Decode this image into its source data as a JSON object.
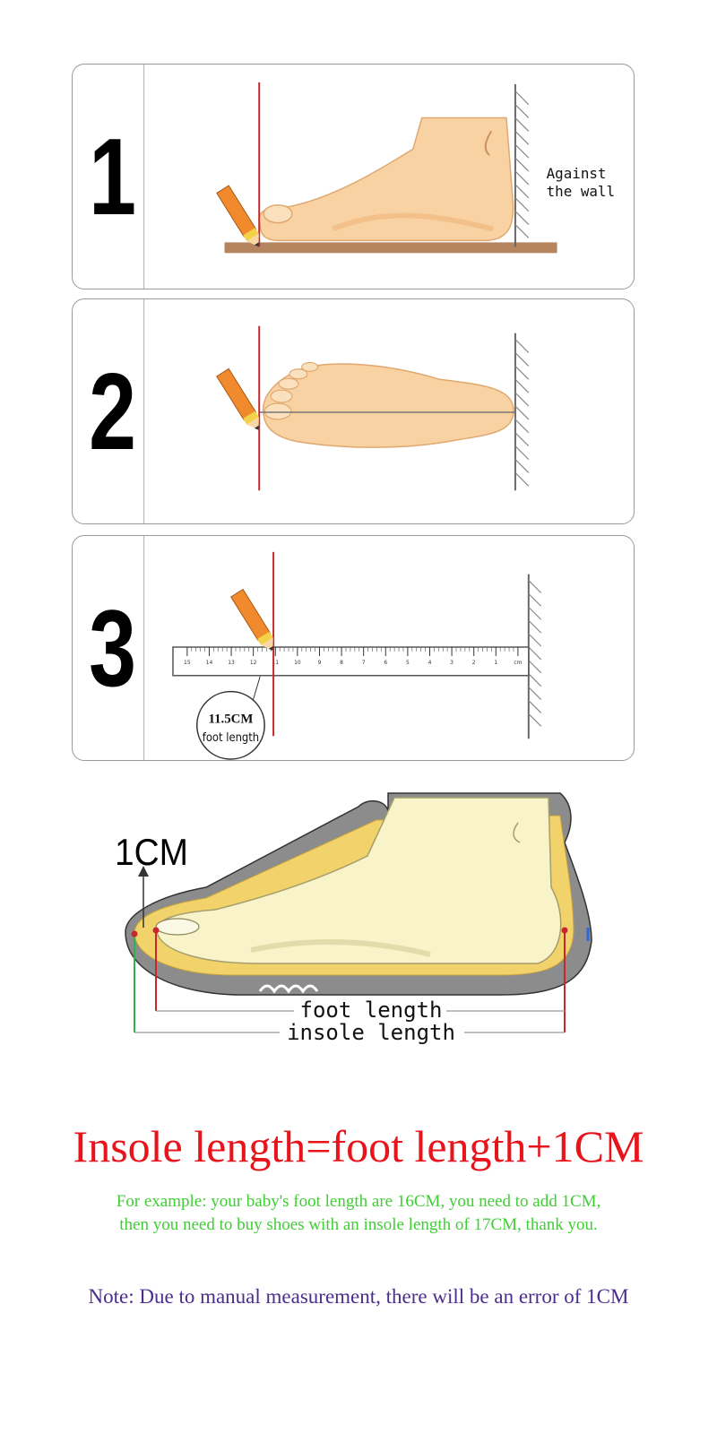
{
  "steps": [
    {
      "number": "1",
      "annotation_line1": "Against",
      "annotation_line2": "the wall"
    },
    {
      "number": "2"
    },
    {
      "number": "3",
      "ruler_ticks": [
        "15",
        "14",
        "13",
        "12",
        "11",
        "10",
        "9",
        "8",
        "7",
        "6",
        "5",
        "4",
        "3",
        "2",
        "1",
        "cm"
      ],
      "reading_value": "11.5CM",
      "reading_label": "foot length"
    }
  ],
  "insole_diagram": {
    "allowance_label": "1CM",
    "foot_length_label": "foot length",
    "insole_length_label": "insole length"
  },
  "headline": "Insole length=foot length+1CM",
  "example_line1": "For example: your baby's foot length are 16CM, you need to add 1CM,",
  "example_line2": "then you need to buy shoes with an insole length of 17CM, thank you.",
  "note": "Note: Due to manual measurement, there will be an error of 1CM",
  "colors": {
    "headline": "#e8141c",
    "example": "#3fcf34",
    "note": "#4a2d8c",
    "guide_red": "#c8272d",
    "guide_green": "#2fb24a",
    "skin": "#f9d2a4",
    "pencil": "#f08a2c",
    "sole": "#8c8c8c",
    "insole": "#f2d36b"
  }
}
